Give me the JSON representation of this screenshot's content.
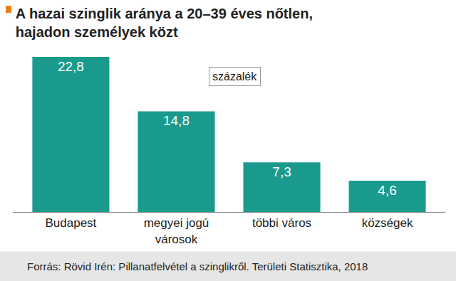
{
  "chart_data": {
    "type": "bar",
    "title": "A hazai szinglik aránya a 20–39 éves nőtlen, hajadon személyek közt",
    "categories": [
      "Budapest",
      "megyei jogú városok",
      "többi város",
      "községek"
    ],
    "values": [
      22.8,
      14.8,
      7.3,
      4.6
    ],
    "value_labels": [
      "22,8",
      "14,8",
      "7,3",
      "4,6"
    ],
    "data_labels": true,
    "color": "#1a9a8c",
    "ylim": [
      0,
      22.8
    ],
    "tick_labels": "x",
    "grid": false,
    "annotations": [
      "százalék"
    ],
    "source": "Forrás: Rövid Irén: Pillanatfelvétel a szinglikről. Területi Statisztika, 2018"
  }
}
